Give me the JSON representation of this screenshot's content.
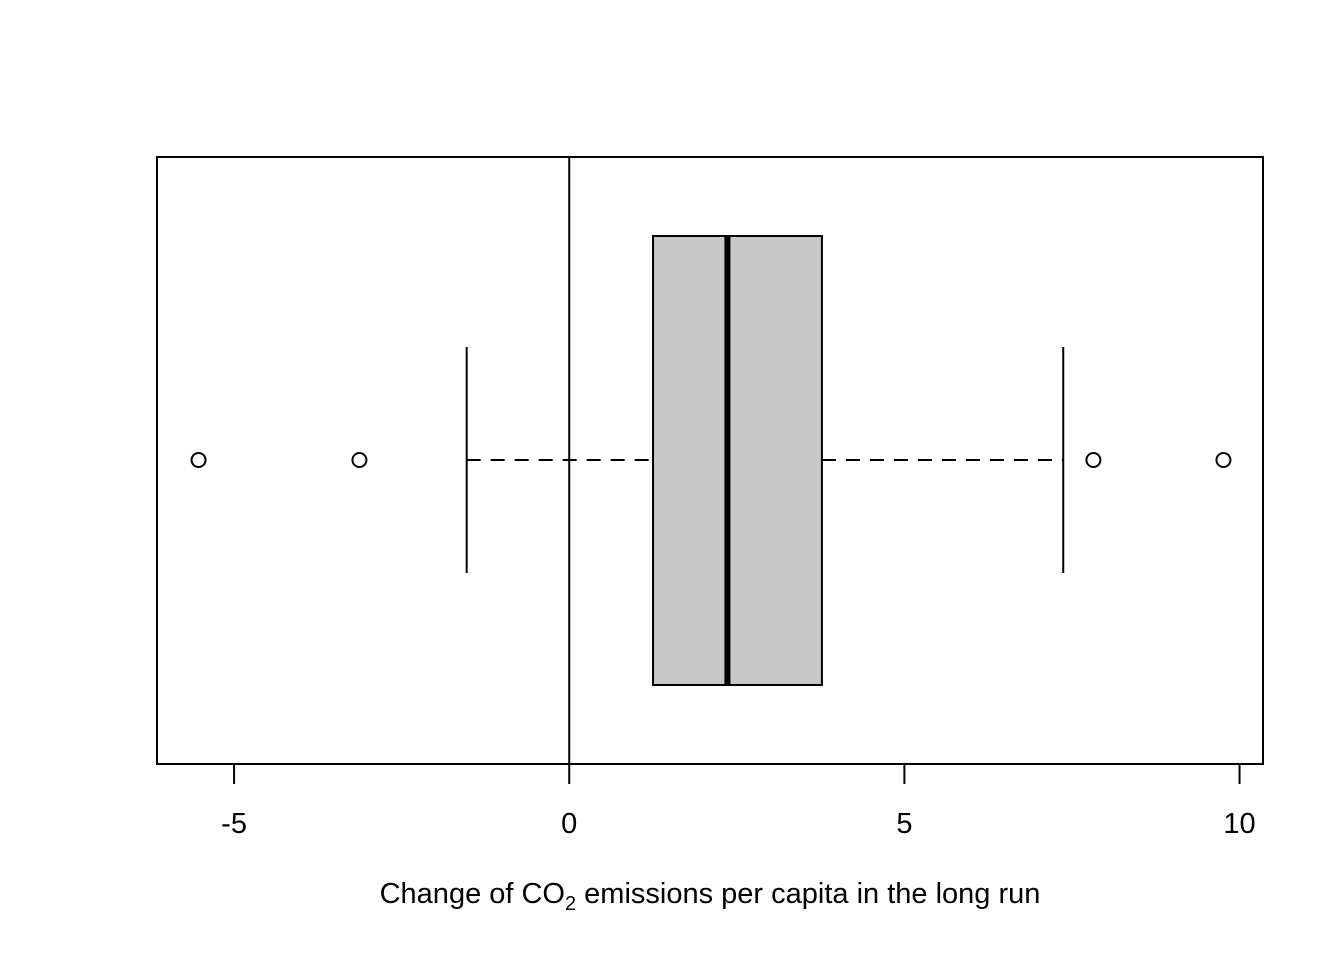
{
  "chart_data": {
    "type": "boxplot",
    "orientation": "horizontal",
    "title": "",
    "xlabel": {
      "prefix": "Change of CO",
      "subscript": "2",
      "suffix": " emissions per capita in the long run"
    },
    "ylabel": "",
    "xlim": [
      -6.15,
      10.35
    ],
    "x_ticks": [
      -5,
      0,
      5,
      10
    ],
    "x_tick_labels": [
      "-5",
      "0",
      "5",
      "10"
    ],
    "reference_line_x": 0,
    "box": {
      "whisker_low": -1.53,
      "q1": 1.25,
      "median": 2.36,
      "q3": 3.77,
      "whisker_high": 7.37
    },
    "outliers": [
      -5.53,
      -3.13,
      7.82,
      9.76
    ],
    "box_fill": "#c8c8c8",
    "line_color": "#000000"
  }
}
